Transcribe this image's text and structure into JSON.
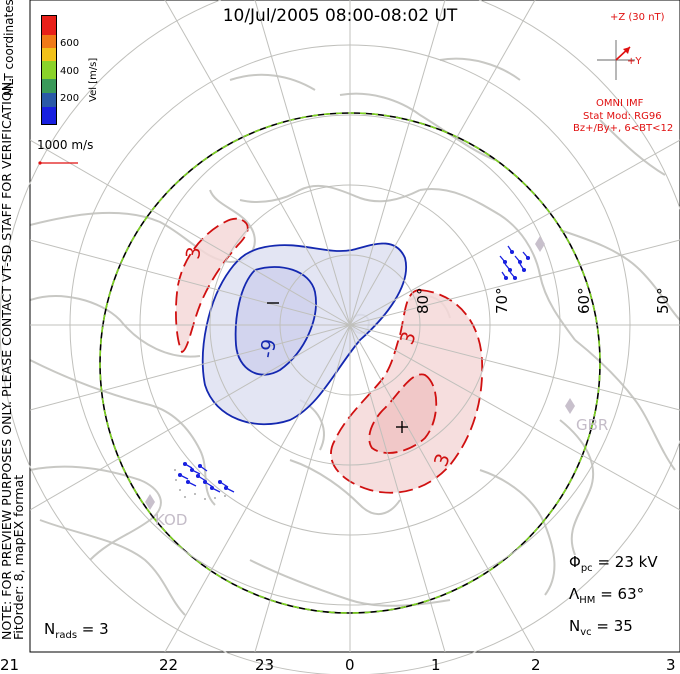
{
  "header": {
    "title": "10/Jul/2005 08:00-08:02 UT"
  },
  "side_notes": {
    "line1": "NOTE: FOR PREVIEW PURPOSES ONLY. PLEASE CONTACT VT-SD STAFF FOR VERIFICATION.",
    "line2": "FitOrder: 8, mapEX format",
    "mlt_label": "MLT coordinates"
  },
  "colorbar": {
    "label": "Vel [m/s]",
    "ticks": [
      "600",
      "400",
      "200"
    ],
    "colors": [
      "#e8201a",
      "#f07a18",
      "#f2c21a",
      "#8ad32a",
      "#3a9a5a",
      "#2a5aa8",
      "#1820e0"
    ]
  },
  "scale_vector": {
    "label": "1000 m/s"
  },
  "imf": {
    "z_label": "+Z (30 nT)",
    "y_label": "+Y",
    "source": "OMNI IMF",
    "model": "Stat Mod: RG96",
    "condition": "Bz+/By+, 6<BT<12",
    "color": "#e01010"
  },
  "latitude_labels": [
    "80°",
    "70°",
    "60°",
    "50°"
  ],
  "mlt_labels": [
    "21",
    "22",
    "23",
    "0",
    "1",
    "2",
    "3"
  ],
  "stations": [
    "KOD",
    "GBR"
  ],
  "contour_labels": {
    "neg_symbol": "−",
    "pos_symbol": "+",
    "neg_value": "-9",
    "pos_value": "3"
  },
  "stats": {
    "phi_pc": "23 kV",
    "lambda_hm": "63°",
    "n_vc": "35",
    "n_rads": "3"
  }
}
